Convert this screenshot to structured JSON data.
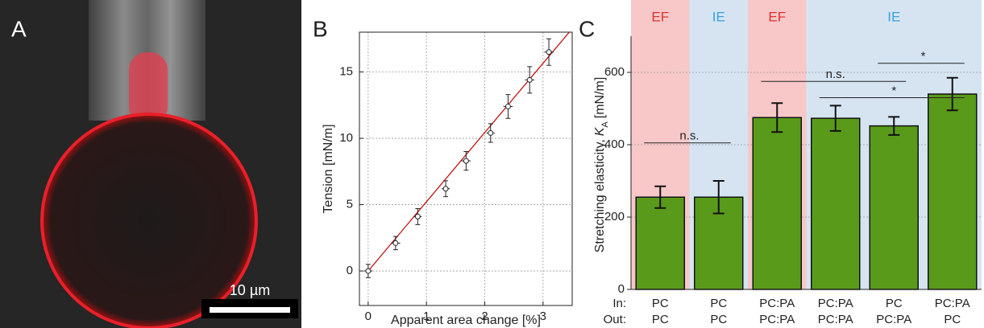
{
  "panel_a": {
    "label": "A",
    "scale_label": "10 µm"
  },
  "chart_data": [
    {
      "type": "scatter",
      "panel_label": "B",
      "x_label": "Apparent area change [%]",
      "y_label": "Tension [mN/m]",
      "x": [
        0,
        0.47,
        0.85,
        1.33,
        1.68,
        2.1,
        2.4,
        2.77,
        3.1
      ],
      "y": [
        0,
        2.1,
        4.1,
        6.2,
        8.3,
        10.4,
        12.4,
        14.4,
        16.5
      ],
      "xerr": [
        0.07,
        0.08,
        0.07,
        0.07,
        0.08,
        0.07,
        0.08,
        0.08,
        0.08
      ],
      "yerr": [
        0.5,
        0.5,
        0.6,
        0.6,
        0.7,
        0.7,
        0.9,
        1.0,
        1.0
      ],
      "fit_line": {
        "x": [
          0,
          3.45
        ],
        "y": [
          0,
          18
        ],
        "color": "#c00000"
      },
      "xlim": [
        -0.15,
        3.5
      ],
      "ylim": [
        -2.6,
        18
      ],
      "xticks": [
        0,
        1,
        2,
        3
      ],
      "yticks": [
        0,
        5,
        10,
        15
      ],
      "grid": true
    },
    {
      "type": "bar",
      "panel_label": "C",
      "y_label": [
        "Stretching elasticity,",
        "K",
        "A",
        "[mN/m]"
      ],
      "row_labels": [
        "In:",
        "Out:"
      ],
      "categories_in": [
        "PC",
        "PC",
        "PC:PA",
        "PC:PA",
        "PC",
        "PC:PA"
      ],
      "categories_out": [
        "PC",
        "PC",
        "PC:PA",
        "PC:PA",
        "PC:PA",
        "PC"
      ],
      "values": [
        255,
        255,
        475,
        473,
        452,
        540
      ],
      "errors": [
        30,
        45,
        40,
        35,
        25,
        45
      ],
      "color": "#5a9a1a",
      "bands": [
        {
          "label": "EF",
          "span": 1,
          "color": "#f8c8c8",
          "text_color": "#e03030"
        },
        {
          "label": "IE",
          "span": 1,
          "color": "#d6e4f2",
          "text_color": "#3aa0e0"
        },
        {
          "label": "EF",
          "span": 1,
          "color": "#f8c8c8",
          "text_color": "#e03030"
        },
        {
          "label": "IE",
          "span": 3,
          "color": "#d6e4f2",
          "text_color": "#3aa0e0"
        }
      ],
      "annotations": [
        {
          "label": "n.s.",
          "from": 0,
          "to": 1,
          "y": 405
        },
        {
          "label": "n.s.",
          "from": 2,
          "to": 4,
          "y": 575
        },
        {
          "label": "*",
          "from": 3,
          "to": 5,
          "y": 530
        },
        {
          "label": "*",
          "from": 4,
          "to": 5,
          "y": 625
        }
      ],
      "ylim": [
        0,
        700
      ],
      "yticks": [
        0,
        200,
        400,
        600
      ],
      "grid": true
    }
  ]
}
